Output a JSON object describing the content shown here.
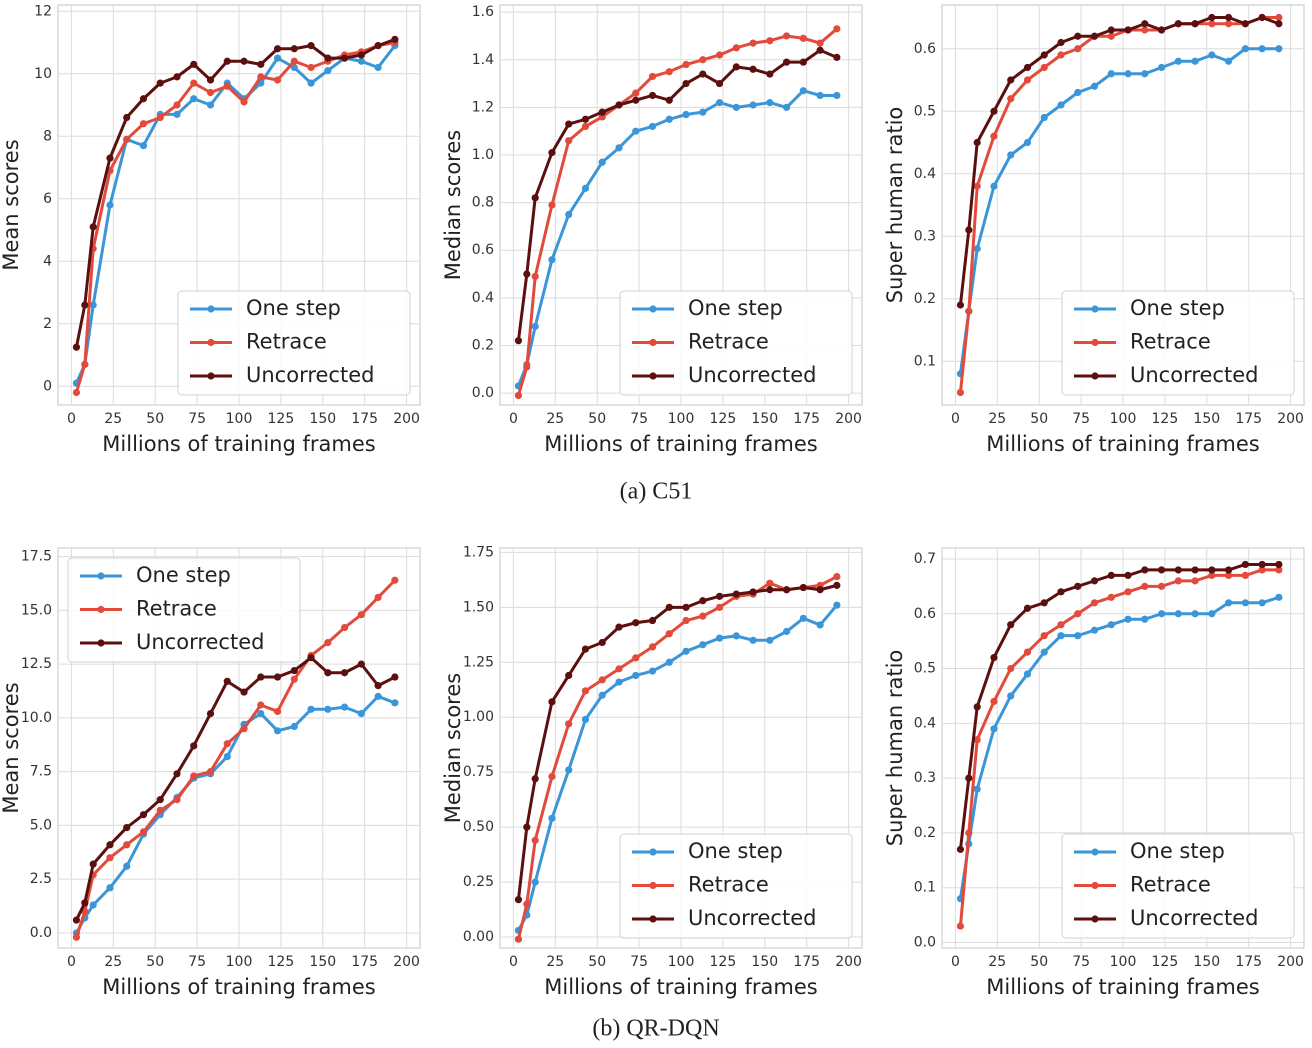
{
  "captions": [
    "(a) C51",
    "(b) QR-DQN"
  ],
  "chart_data": [
    {
      "type": "line",
      "xlabel": "Millions of training frames",
      "ylabel": "Mean scores",
      "legend": "lower right",
      "grid": true,
      "xlim": [
        -8,
        208
      ],
      "xticks": [
        0,
        25,
        50,
        75,
        100,
        125,
        150,
        175,
        200
      ],
      "ylim": [
        -0.6,
        12.2
      ],
      "yticks": [
        0,
        2,
        4,
        6,
        8,
        10,
        12
      ],
      "x": [
        3,
        8,
        13,
        23,
        33,
        43,
        53,
        63,
        73,
        83,
        93,
        103,
        113,
        123,
        133,
        143,
        153,
        163,
        173,
        183,
        193
      ],
      "series": [
        {
          "name": "One step",
          "color": "#3a96d9",
          "values": [
            0.1,
            0.7,
            2.6,
            5.8,
            7.9,
            7.7,
            8.7,
            8.7,
            9.2,
            9.0,
            9.7,
            9.2,
            9.7,
            10.5,
            10.2,
            9.7,
            10.1,
            10.5,
            10.4,
            10.2,
            10.9
          ]
        },
        {
          "name": "Retrace",
          "color": "#e24a3b",
          "values": [
            -0.2,
            0.7,
            4.4,
            6.9,
            7.9,
            8.4,
            8.6,
            9.0,
            9.7,
            9.4,
            9.6,
            9.1,
            9.9,
            9.8,
            10.4,
            10.2,
            10.4,
            10.6,
            10.7,
            10.9,
            11.0
          ]
        },
        {
          "name": "Uncorrected",
          "color": "#5b0f0f",
          "values": [
            1.25,
            2.6,
            5.1,
            7.3,
            8.6,
            9.2,
            9.7,
            9.9,
            10.3,
            9.8,
            10.4,
            10.4,
            10.3,
            10.8,
            10.8,
            10.9,
            10.5,
            10.5,
            10.6,
            10.9,
            11.1
          ]
        }
      ]
    },
    {
      "type": "line",
      "xlabel": "Millions of training frames",
      "ylabel": "Median scores",
      "legend": "lower right",
      "grid": true,
      "xlim": [
        -8,
        208
      ],
      "xticks": [
        0,
        25,
        50,
        75,
        100,
        125,
        150,
        175,
        200
      ],
      "ylim": [
        -0.05,
        1.63
      ],
      "yticks": [
        {
          "value": 0,
          "label": "0.0"
        },
        0.2,
        0.4,
        0.6,
        0.8,
        {
          "value": 1,
          "label": "1.0"
        },
        1.2,
        1.4,
        1.6
      ],
      "x": [
        3,
        8,
        13,
        23,
        33,
        43,
        53,
        63,
        73,
        83,
        93,
        103,
        113,
        123,
        133,
        143,
        153,
        163,
        173,
        183,
        193
      ],
      "series": [
        {
          "name": "One step",
          "color": "#3a96d9",
          "values": [
            0.03,
            0.12,
            0.28,
            0.56,
            0.75,
            0.86,
            0.97,
            1.03,
            1.1,
            1.12,
            1.15,
            1.17,
            1.18,
            1.22,
            1.2,
            1.21,
            1.22,
            1.2,
            1.27,
            1.25,
            1.25
          ]
        },
        {
          "name": "Retrace",
          "color": "#e24a3b",
          "values": [
            -0.01,
            0.11,
            0.49,
            0.79,
            1.06,
            1.12,
            1.16,
            1.21,
            1.26,
            1.33,
            1.35,
            1.38,
            1.4,
            1.42,
            1.45,
            1.47,
            1.48,
            1.5,
            1.49,
            1.47,
            1.53
          ]
        },
        {
          "name": "Uncorrected",
          "color": "#5b0f0f",
          "values": [
            0.22,
            0.5,
            0.82,
            1.01,
            1.13,
            1.15,
            1.18,
            1.21,
            1.23,
            1.25,
            1.23,
            1.3,
            1.34,
            1.3,
            1.37,
            1.36,
            1.34,
            1.39,
            1.39,
            1.44,
            1.41
          ]
        }
      ]
    },
    {
      "type": "line",
      "xlabel": "Millions of training frames",
      "ylabel": "Super human ratio",
      "legend": "lower right",
      "grid": true,
      "xlim": [
        -8,
        208
      ],
      "xticks": [
        0,
        25,
        50,
        75,
        100,
        125,
        150,
        175,
        200
      ],
      "ylim": [
        0.03,
        0.67
      ],
      "yticks": [
        0.1,
        0.2,
        0.3,
        0.4,
        0.5,
        0.6
      ],
      "x": [
        3,
        8,
        13,
        23,
        33,
        43,
        53,
        63,
        73,
        83,
        93,
        103,
        113,
        123,
        133,
        143,
        153,
        163,
        173,
        183,
        193
      ],
      "series": [
        {
          "name": "One step",
          "color": "#3a96d9",
          "values": [
            0.08,
            0.18,
            0.28,
            0.38,
            0.43,
            0.45,
            0.49,
            0.51,
            0.53,
            0.54,
            0.56,
            0.56,
            0.56,
            0.57,
            0.58,
            0.58,
            0.59,
            0.58,
            0.6,
            0.6,
            0.6
          ]
        },
        {
          "name": "Retrace",
          "color": "#e24a3b",
          "values": [
            0.05,
            0.18,
            0.38,
            0.46,
            0.52,
            0.55,
            0.57,
            0.59,
            0.6,
            0.62,
            0.62,
            0.63,
            0.63,
            0.63,
            0.64,
            0.64,
            0.64,
            0.64,
            0.64,
            0.65,
            0.65
          ]
        },
        {
          "name": "Uncorrected",
          "color": "#5b0f0f",
          "values": [
            0.19,
            0.31,
            0.45,
            0.5,
            0.55,
            0.57,
            0.59,
            0.61,
            0.62,
            0.62,
            0.63,
            0.63,
            0.64,
            0.63,
            0.64,
            0.64,
            0.65,
            0.65,
            0.64,
            0.65,
            0.64
          ]
        }
      ]
    },
    {
      "type": "line",
      "xlabel": "Millions of training frames",
      "ylabel": "Mean scores",
      "legend": "upper left",
      "grid": true,
      "xlim": [
        -8,
        208
      ],
      "xticks": [
        0,
        25,
        50,
        75,
        100,
        125,
        150,
        175,
        200
      ],
      "ylim": [
        -0.7,
        17.9
      ],
      "yticks": [
        {
          "value": 0,
          "label": "0.0"
        },
        2.5,
        {
          "value": 5,
          "label": "5.0"
        },
        7.5,
        {
          "value": 10,
          "label": "10.0"
        },
        12.5,
        {
          "value": 15,
          "label": "15.0"
        },
        17.5
      ],
      "x": [
        3,
        8,
        13,
        23,
        33,
        43,
        53,
        63,
        73,
        83,
        93,
        103,
        113,
        123,
        133,
        143,
        153,
        163,
        173,
        183,
        193
      ],
      "series": [
        {
          "name": "One step",
          "color": "#3a96d9",
          "values": [
            0.0,
            0.7,
            1.3,
            2.1,
            3.1,
            4.6,
            5.5,
            6.3,
            7.2,
            7.4,
            8.2,
            9.7,
            10.2,
            9.4,
            9.6,
            10.4,
            10.4,
            10.5,
            10.2,
            11.0,
            10.7
          ]
        },
        {
          "name": "Retrace",
          "color": "#e24a3b",
          "values": [
            -0.2,
            1.0,
            2.7,
            3.5,
            4.1,
            4.7,
            5.7,
            6.2,
            7.3,
            7.5,
            8.8,
            9.5,
            10.6,
            10.3,
            11.8,
            12.9,
            13.5,
            14.2,
            14.8,
            15.6,
            16.4
          ]
        },
        {
          "name": "Uncorrected",
          "color": "#5b0f0f",
          "values": [
            0.6,
            1.4,
            3.2,
            4.1,
            4.9,
            5.5,
            6.2,
            7.4,
            8.7,
            10.2,
            11.7,
            11.2,
            11.9,
            11.9,
            12.2,
            12.8,
            12.1,
            12.1,
            12.5,
            11.5,
            11.9
          ]
        }
      ]
    },
    {
      "type": "line",
      "xlabel": "Millions of training frames",
      "ylabel": "Median scores",
      "legend": "lower right",
      "grid": true,
      "xlim": [
        -8,
        208
      ],
      "xticks": [
        0,
        25,
        50,
        75,
        100,
        125,
        150,
        175,
        200
      ],
      "ylim": [
        -0.05,
        1.77
      ],
      "yticks": [
        {
          "value": 0,
          "label": "0.00"
        },
        0.25,
        {
          "value": 0.5,
          "label": "0.50"
        },
        0.75,
        {
          "value": 1,
          "label": "1.00"
        },
        1.25,
        {
          "value": 1.5,
          "label": "1.50"
        },
        1.75
      ],
      "x": [
        3,
        8,
        13,
        23,
        33,
        43,
        53,
        63,
        73,
        83,
        93,
        103,
        113,
        123,
        133,
        143,
        153,
        163,
        173,
        183,
        193
      ],
      "series": [
        {
          "name": "One step",
          "color": "#3a96d9",
          "values": [
            0.03,
            0.1,
            0.25,
            0.54,
            0.76,
            0.99,
            1.1,
            1.16,
            1.19,
            1.21,
            1.25,
            1.3,
            1.33,
            1.36,
            1.37,
            1.35,
            1.35,
            1.39,
            1.45,
            1.42,
            1.51
          ]
        },
        {
          "name": "Retrace",
          "color": "#e24a3b",
          "values": [
            -0.01,
            0.15,
            0.44,
            0.73,
            0.97,
            1.12,
            1.17,
            1.22,
            1.27,
            1.32,
            1.38,
            1.44,
            1.46,
            1.5,
            1.55,
            1.56,
            1.61,
            1.58,
            1.59,
            1.6,
            1.64
          ]
        },
        {
          "name": "Uncorrected",
          "color": "#5b0f0f",
          "values": [
            0.17,
            0.5,
            0.72,
            1.07,
            1.19,
            1.31,
            1.34,
            1.41,
            1.43,
            1.44,
            1.5,
            1.5,
            1.53,
            1.55,
            1.56,
            1.57,
            1.58,
            1.58,
            1.59,
            1.58,
            1.6
          ]
        }
      ]
    },
    {
      "type": "line",
      "xlabel": "Millions of training frames",
      "ylabel": "Super human ratio",
      "legend": "lower right",
      "grid": true,
      "xlim": [
        -8,
        208
      ],
      "xticks": [
        0,
        25,
        50,
        75,
        100,
        125,
        150,
        175,
        200
      ],
      "ylim": [
        -0.01,
        0.72
      ],
      "yticks": [
        {
          "value": 0,
          "label": "0.0"
        },
        0.1,
        0.2,
        0.3,
        0.4,
        0.5,
        0.6,
        0.7
      ],
      "x": [
        3,
        8,
        13,
        23,
        33,
        43,
        53,
        63,
        73,
        83,
        93,
        103,
        113,
        123,
        133,
        143,
        153,
        163,
        173,
        183,
        193
      ],
      "series": [
        {
          "name": "One step",
          "color": "#3a96d9",
          "values": [
            0.08,
            0.18,
            0.28,
            0.39,
            0.45,
            0.49,
            0.53,
            0.56,
            0.56,
            0.57,
            0.58,
            0.59,
            0.59,
            0.6,
            0.6,
            0.6,
            0.6,
            0.62,
            0.62,
            0.62,
            0.63
          ]
        },
        {
          "name": "Retrace",
          "color": "#e24a3b",
          "values": [
            0.03,
            0.2,
            0.37,
            0.44,
            0.5,
            0.53,
            0.56,
            0.58,
            0.6,
            0.62,
            0.63,
            0.64,
            0.65,
            0.65,
            0.66,
            0.66,
            0.67,
            0.67,
            0.67,
            0.68,
            0.68
          ]
        },
        {
          "name": "Uncorrected",
          "color": "#5b0f0f",
          "values": [
            0.17,
            0.3,
            0.43,
            0.52,
            0.58,
            0.61,
            0.62,
            0.64,
            0.65,
            0.66,
            0.67,
            0.67,
            0.68,
            0.68,
            0.68,
            0.68,
            0.68,
            0.68,
            0.69,
            0.69,
            0.69
          ]
        }
      ]
    }
  ]
}
